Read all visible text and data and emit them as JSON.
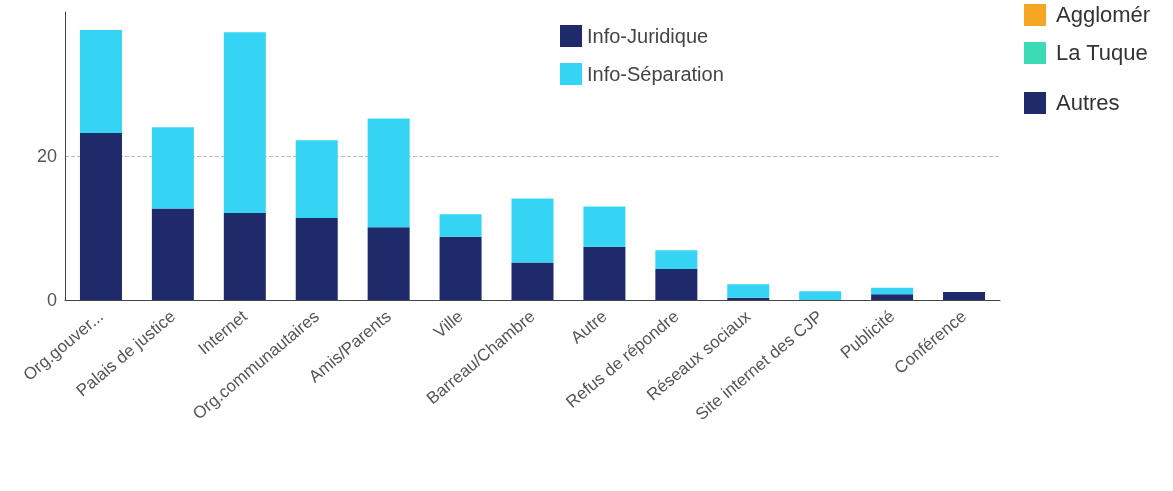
{
  "chart_data": [
    {
      "type": "bar",
      "stacked": true,
      "categories": [
        "Org.gouver...",
        "Palais de justice",
        "Internet",
        "Org.communautaires",
        "Amis/Parents",
        "Ville",
        "Barreau/Chambre",
        "Autre",
        "Refus de répondre",
        "Réseaux sociaux",
        "Site internet des CJP",
        "Publicité",
        "Conférence"
      ],
      "series": [
        {
          "name": "Info-Juridique",
          "color": "#1f2a6b",
          "values": [
            23.2,
            12.7,
            12.1,
            11.4,
            10.1,
            8.8,
            5.2,
            7.4,
            4.3,
            0.3,
            0,
            0.8,
            1.1
          ]
        },
        {
          "name": "Info-Séparation",
          "color": "#35d4f5",
          "values": [
            14.3,
            11.3,
            25.1,
            10.8,
            15.1,
            3.1,
            8.9,
            5.6,
            2.6,
            1.9,
            1.2,
            0.9,
            0
          ]
        }
      ],
      "ylim": [
        0,
        40
      ],
      "yticks": [
        0,
        20
      ],
      "grid": "y",
      "legend": "top"
    },
    {
      "type": "other",
      "categories": [
        "Agglomér",
        "La Tuque",
        "Autres"
      ],
      "colors": [
        "#f5a623",
        "#3ddbb5",
        "#1f2a6b"
      ]
    }
  ]
}
